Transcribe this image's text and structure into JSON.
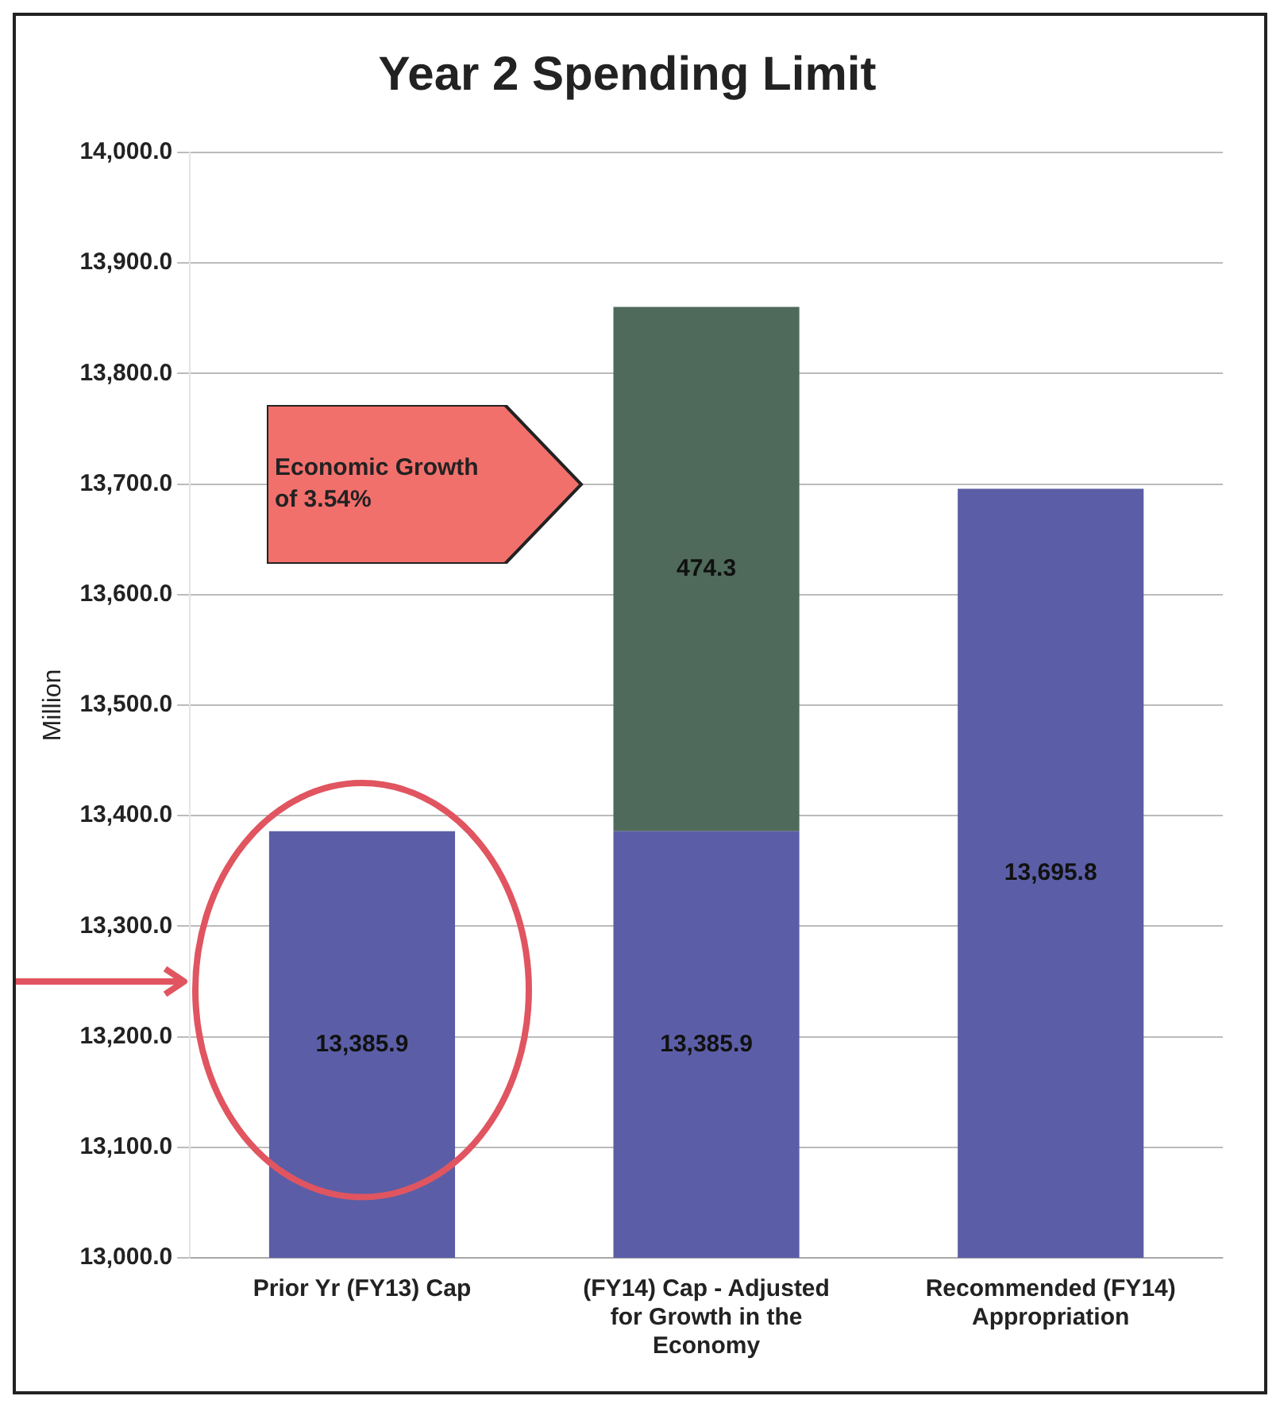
{
  "chart_data": {
    "type": "bar",
    "title": "Year 2 Spending Limit",
    "ylabel": "Million",
    "categories": [
      "Prior Yr (FY13) Cap",
      "(FY14) Cap - Adjusted for Growth in the Economy",
      "Recommended (FY14) Appropriation"
    ],
    "series": [
      {
        "color": "#5b5ea6",
        "values": [
          13385.9,
          13385.9,
          13695.8
        ]
      },
      {
        "color": "#4f6a5a",
        "values": [
          null,
          474.3,
          null
        ],
        "base": [
          null,
          13385.9,
          null
        ]
      }
    ],
    "value_labels": [
      [
        "13,385.9",
        "13,385.9",
        "13,695.8"
      ],
      [
        null,
        "474.3",
        null
      ]
    ],
    "ylim": [
      13000,
      14000
    ],
    "yticks": [
      {
        "value": 13000,
        "label": "13,000.0"
      },
      {
        "value": 13100,
        "label": "13,100.0"
      },
      {
        "value": 13200,
        "label": "13,200.0"
      },
      {
        "value": 13300,
        "label": "13,300.0"
      },
      {
        "value": 13400,
        "label": "13,400.0"
      },
      {
        "value": 13500,
        "label": "13,500.0"
      },
      {
        "value": 13600,
        "label": "13,600.0"
      },
      {
        "value": 13700,
        "label": "13,700.0"
      },
      {
        "value": 13800,
        "label": "13,800.0"
      },
      {
        "value": 13900,
        "label": "13,900.0"
      },
      {
        "value": 14000,
        "label": "14,000.0"
      }
    ],
    "grid": "y",
    "legend": false,
    "annotations": [
      "Economic Growth of 3.54%"
    ]
  }
}
